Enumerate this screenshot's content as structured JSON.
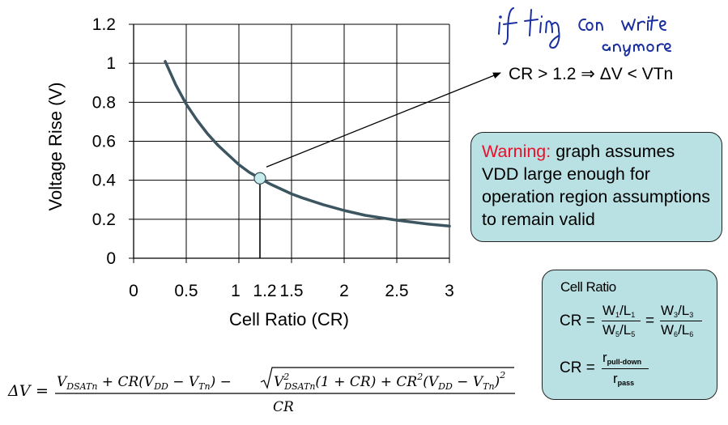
{
  "chart_data": {
    "type": "line",
    "xlabel": "Cell Ratio (CR)",
    "ylabel": "Voltage Rise (V)",
    "xlim": [
      0,
      3
    ],
    "ylim": [
      0,
      1.2
    ],
    "x_ticks": [
      "0",
      "0.5",
      "1",
      "1.2",
      "1.5",
      "2",
      "2.5",
      "3"
    ],
    "y_ticks": [
      "0",
      "0.2",
      "0.4",
      "0.6",
      "0.8",
      "1",
      "1.2"
    ],
    "grid": true,
    "series": [
      {
        "color": "#3d5561",
        "points": [
          [
            0.3,
            1.01
          ],
          [
            0.4,
            0.89
          ],
          [
            0.5,
            0.79
          ],
          [
            0.6,
            0.71
          ],
          [
            0.7,
            0.64
          ],
          [
            0.8,
            0.58
          ],
          [
            0.9,
            0.53
          ],
          [
            1.0,
            0.48
          ],
          [
            1.1,
            0.44
          ],
          [
            1.2,
            0.41
          ],
          [
            1.3,
            0.38
          ],
          [
            1.4,
            0.355
          ],
          [
            1.5,
            0.33
          ],
          [
            1.6,
            0.31
          ],
          [
            1.8,
            0.275
          ],
          [
            2.0,
            0.245
          ],
          [
            2.2,
            0.22
          ],
          [
            2.5,
            0.195
          ],
          [
            2.8,
            0.175
          ],
          [
            3.0,
            0.165
          ]
        ]
      }
    ],
    "highlight_point": {
      "x": 1.2,
      "y": 0.41
    },
    "annotation": "CR > 1.2 ⇒ ΔV < VTn"
  },
  "warning": {
    "label": "Warning:",
    "text": "graph assumes VDD large enough for operation region assumptions to remain valid"
  },
  "cell_ratio_box": {
    "title": "Cell Ratio",
    "lhs": "CR =",
    "eq": "=",
    "f1_num": "W1/L1",
    "f1_den": "W5/L5",
    "f2_num": "W3/L3",
    "f2_den": "W6/L6",
    "r_num": "rpull-down",
    "r_den": "rpass"
  },
  "formula": {
    "lhs": "ΔV",
    "equals": "=",
    "numerator": "V_DSATn + CR(V_DD − V_Tn) − √(V_DSATn²(1 + CR) + CR²(V_DD − V_Tn)²)",
    "denominator": "CR"
  },
  "handwriting": "if tiny can write anymore",
  "colors": {
    "curve": "#3d5561",
    "box_fill": "#b9e0e3",
    "warning_label": "#e8102a",
    "marker_fill": "#c8ecee",
    "handwriting": "#1a2fa0"
  }
}
